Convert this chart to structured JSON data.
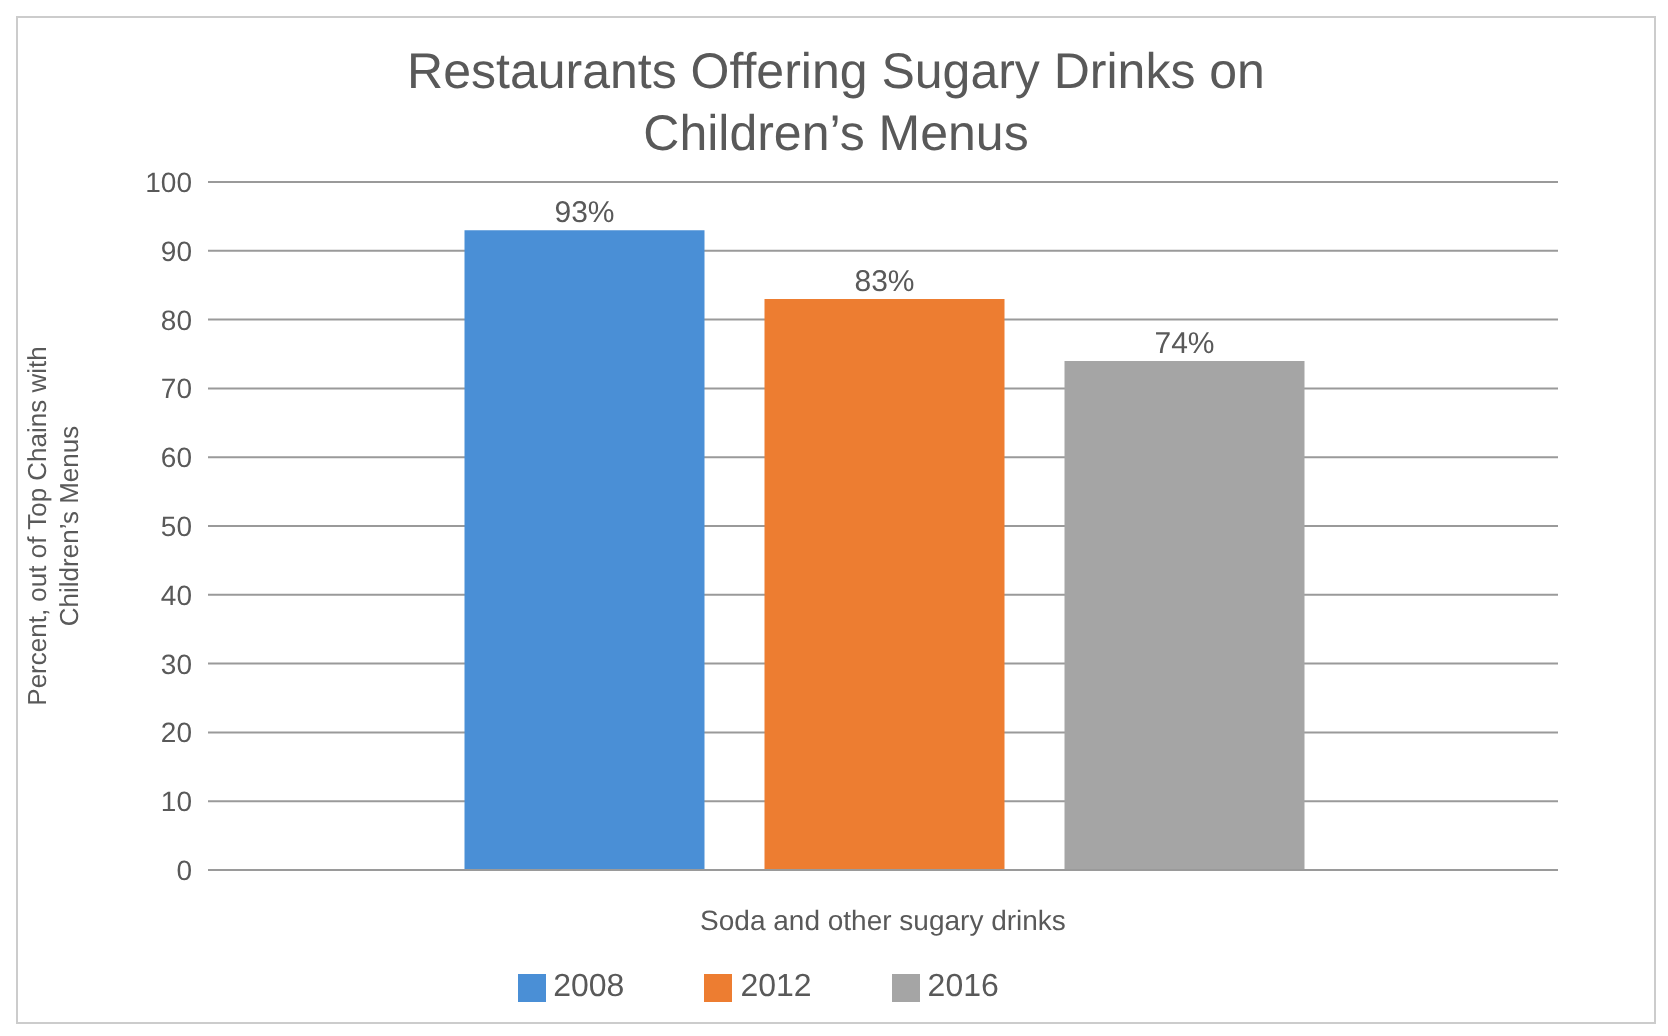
{
  "chart_data": {
    "type": "bar",
    "title": "Restaurants Offering Sugary Drinks on Children’s Menus",
    "ylabel": "Percent, out of Top Chains with Children’s Menus",
    "categories": [
      "Soda and other sugary drinks"
    ],
    "series": [
      {
        "name": "2008",
        "color": "#4a8fd6",
        "values": [
          93
        ],
        "value_labels": [
          "93%"
        ]
      },
      {
        "name": "2012",
        "color": "#ed7d31",
        "values": [
          83
        ],
        "value_labels": [
          "83%"
        ]
      },
      {
        "name": "2016",
        "color": "#a5a5a5",
        "values": [
          74
        ],
        "value_labels": [
          "74%"
        ]
      }
    ],
    "ylim": [
      0,
      100
    ],
    "yticks": [
      0,
      10,
      20,
      30,
      40,
      50,
      60,
      70,
      80,
      90,
      100
    ],
    "grid": "y",
    "legend": "bottom"
  }
}
